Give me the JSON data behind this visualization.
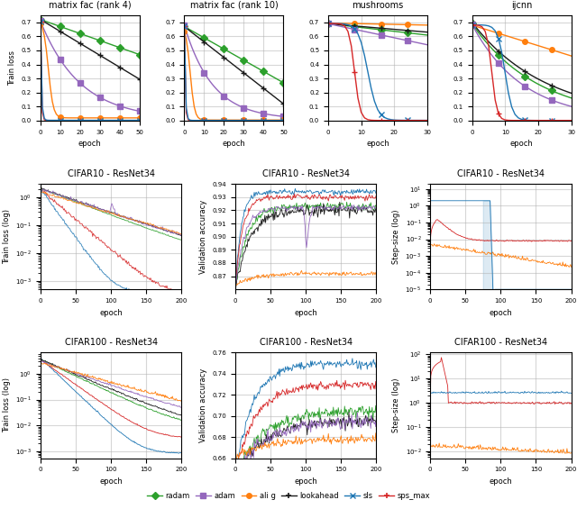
{
  "row1_titles": [
    "matrix fac (rank 4)",
    "matrix fac (rank 10)",
    "mushrooms",
    "ijcnn"
  ],
  "row1_ylabel": "Train loss",
  "row1_xlabel": "epoch",
  "row2_titles": [
    "CIFAR10 - ResNet34",
    "CIFAR10 - ResNet34",
    "CIFAR10 - ResNet34"
  ],
  "row2_ylabels": [
    "Train loss (log)",
    "Validation accuracy",
    "Step-size (log)"
  ],
  "row3_titles": [
    "CIFAR100 - ResNet34",
    "CIFAR100 - ResNet34",
    "CIFAR100 - ResNet34"
  ],
  "row3_ylabels": [
    "Train loss (log)",
    "Validation accuracy",
    "Step-size (log)"
  ],
  "row23_xlabel": "epoch",
  "legend_labels": [
    "radam",
    "adam",
    "ali g",
    "lookahead",
    "sls",
    "sps_max"
  ],
  "colors": {
    "radam": "#2ca02c",
    "adam": "#9467bd",
    "ali_g": "#ff7f0e",
    "lookahead": "#1a1a1a",
    "sls": "#1f77b4",
    "sps_max": "#d62728"
  }
}
